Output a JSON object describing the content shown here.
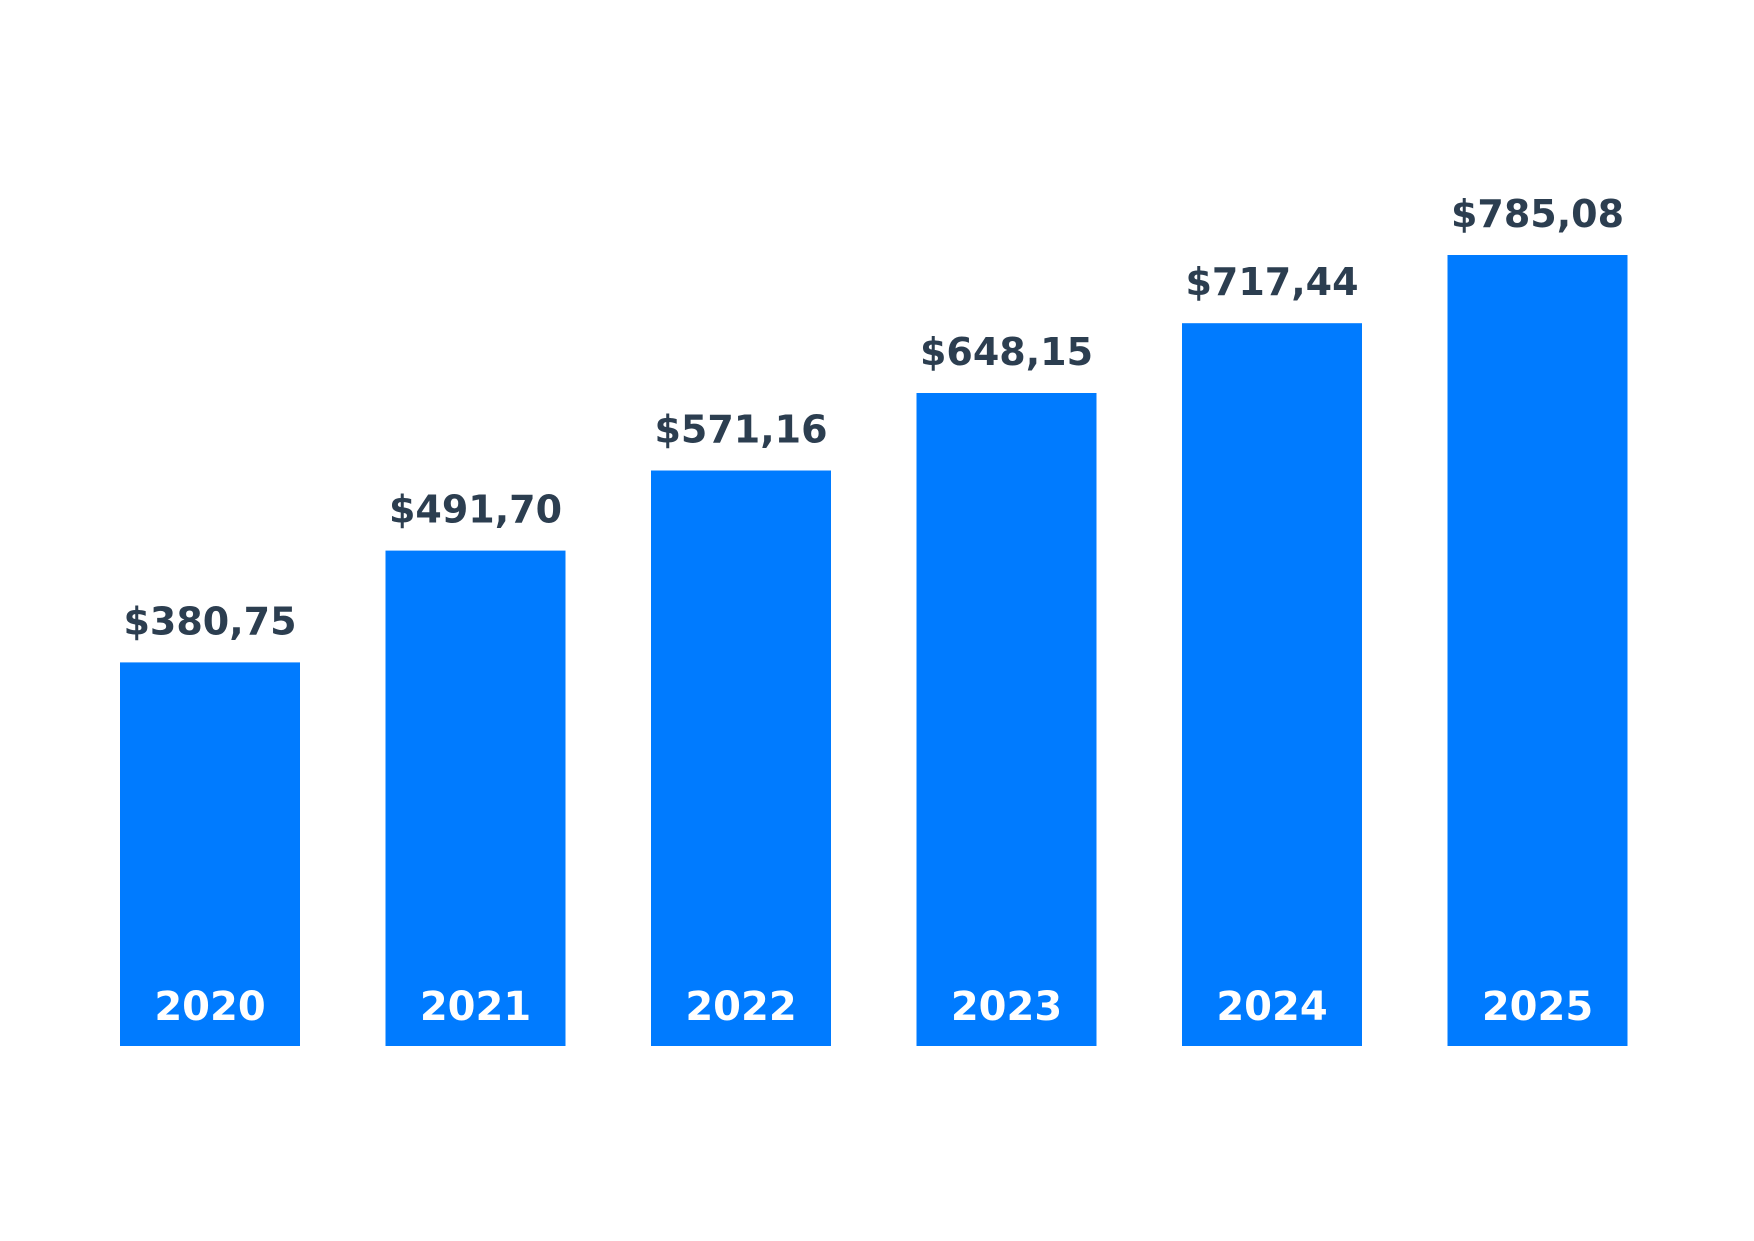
{
  "chart_data": {
    "type": "bar",
    "categories": [
      "2020",
      "2021",
      "2022",
      "2023",
      "2024",
      "2025"
    ],
    "values": [
      380.75,
      491.7,
      571.16,
      648.15,
      717.44,
      785.08
    ],
    "value_labels": [
      "$380,75",
      "$491,70",
      "$571,16",
      "$648,15",
      "$717,44",
      "$785,08"
    ],
    "title": "",
    "xlabel": "",
    "ylabel": "",
    "ylim": [
      0,
      785.08
    ],
    "grid": false,
    "legend": "none",
    "category_label_placement": "inside-bottom",
    "value_label_placement": "above-bar"
  },
  "colors": {
    "bar": "#007bff",
    "value_label": "#2c3e50",
    "category_label": "#ffffff",
    "background": "#ffffff"
  }
}
